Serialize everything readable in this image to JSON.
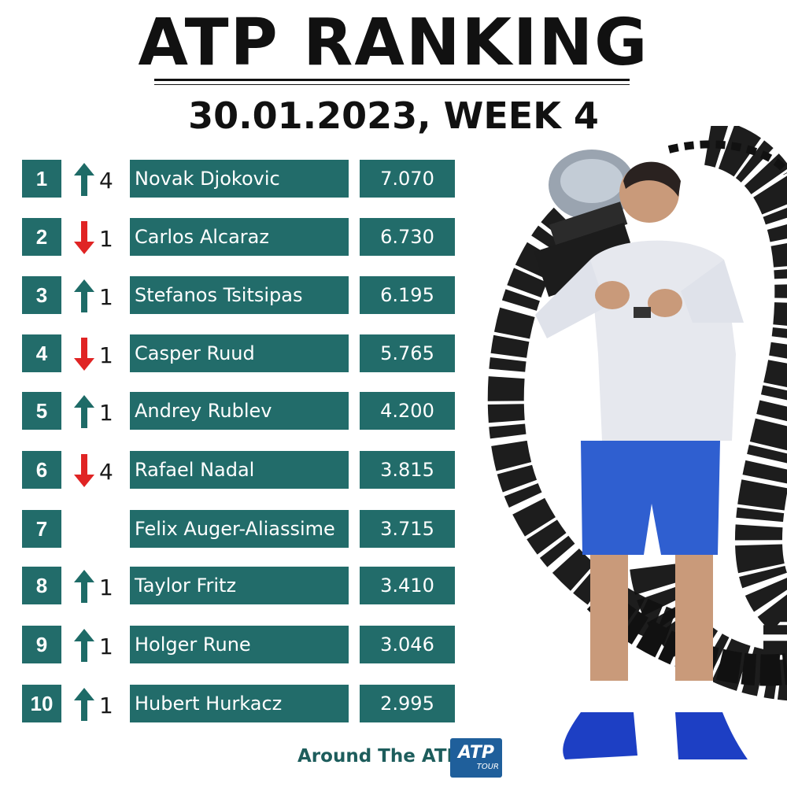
{
  "header": {
    "title": "ATP RANKING",
    "subtitle": "30.01.2023, WEEK 4"
  },
  "colors": {
    "teal": "#226c6a",
    "up_arrow": "#1e6b67",
    "down_arrow": "#e02424"
  },
  "rankings": [
    {
      "rank": "1",
      "direction": "up",
      "change": "4",
      "name": "Novak Djokovic",
      "points": "7.070"
    },
    {
      "rank": "2",
      "direction": "down",
      "change": "1",
      "name": "Carlos Alcaraz",
      "points": "6.730"
    },
    {
      "rank": "3",
      "direction": "up",
      "change": "1",
      "name": "Stefanos Tsitsipas",
      "points": "6.195"
    },
    {
      "rank": "4",
      "direction": "down",
      "change": "1",
      "name": "Casper Ruud",
      "points": "5.765"
    },
    {
      "rank": "5",
      "direction": "up",
      "change": "1",
      "name": "Andrey Rublev",
      "points": "4.200"
    },
    {
      "rank": "6",
      "direction": "down",
      "change": "4",
      "name": "Rafael Nadal",
      "points": "3.815"
    },
    {
      "rank": "7",
      "direction": "none",
      "change": "",
      "name": "Felix Auger-Aliassime",
      "points": "3.715"
    },
    {
      "rank": "8",
      "direction": "up",
      "change": "1",
      "name": "Taylor Fritz",
      "points": "3.410"
    },
    {
      "rank": "9",
      "direction": "up",
      "change": "1",
      "name": "Holger Rune",
      "points": "3.046"
    },
    {
      "rank": "10",
      "direction": "up",
      "change": "1",
      "name": "Hubert Hurkacz",
      "points": "2.995"
    }
  ],
  "footer": {
    "brand": "Around The ATP",
    "logo_main": "ATP",
    "logo_sub": "TOUR"
  }
}
